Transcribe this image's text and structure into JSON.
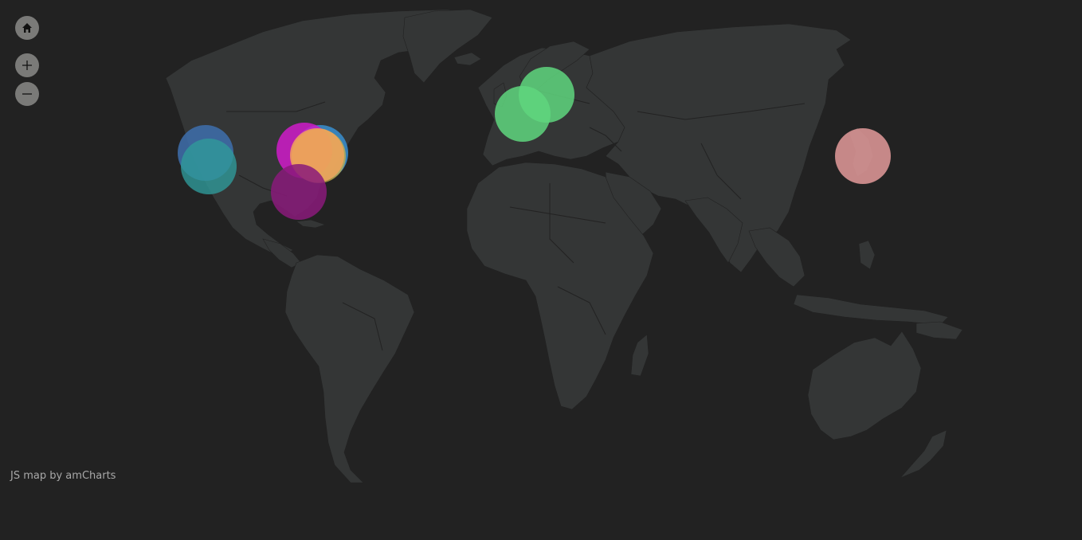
{
  "map": {
    "background_color": "#222222",
    "land_color": "#343636",
    "border_color": "#222222"
  },
  "controls": {
    "home": {
      "icon": "home-icon"
    },
    "zoom_in": {
      "icon": "plus-icon"
    },
    "zoom_out": {
      "icon": "minus-icon"
    }
  },
  "credit": {
    "text": "JS map by amCharts"
  },
  "bubbles": [
    {
      "id": "los-angeles-1",
      "color": "#3e6fad"
    },
    {
      "id": "los-angeles-2",
      "color": "#2f9a9a"
    },
    {
      "id": "new-york-blue",
      "color": "#3a8fd0"
    },
    {
      "id": "chicago-magenta",
      "color": "#d01bc9"
    },
    {
      "id": "new-york-orange",
      "color": "#f1a35b"
    },
    {
      "id": "new-york-yellow",
      "color": "#c9b24a"
    },
    {
      "id": "miami-purple",
      "color": "#8a1a7a"
    },
    {
      "id": "paris-green",
      "color": "#5fd67e"
    },
    {
      "id": "berlin-green",
      "color": "#5fd67e"
    },
    {
      "id": "tokyo-pink",
      "color": "#e39a9a"
    }
  ]
}
